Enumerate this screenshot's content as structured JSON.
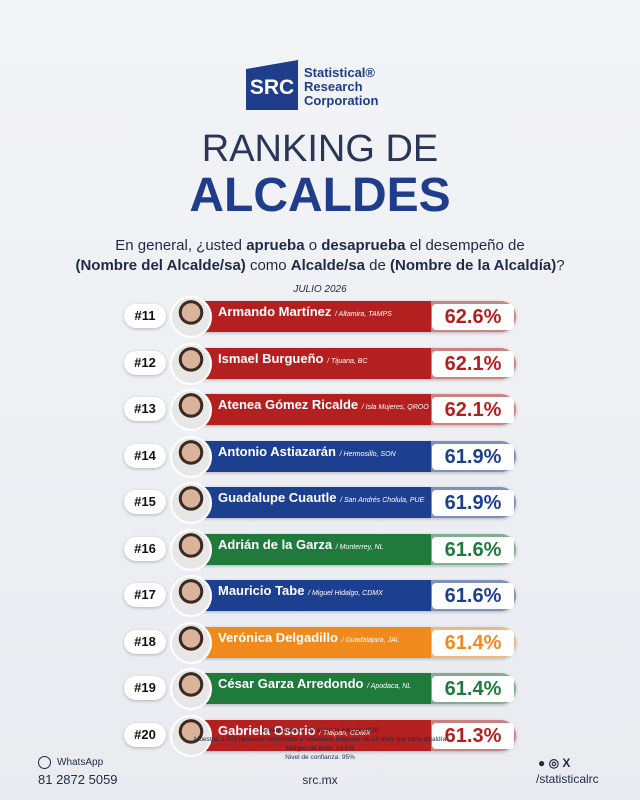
{
  "logo": {
    "mark": "SRC",
    "lines": [
      "Statistical®",
      "Research",
      "Corporation"
    ]
  },
  "header": {
    "title": "RANKING DE",
    "subtitle": "ALCALDES",
    "date": "JULIO 2026"
  },
  "question": {
    "line1": [
      "En general, ¿usted ",
      "aprueba",
      " o ",
      "desaprueba",
      " el desempeño de"
    ],
    "line2": [
      "(Nombre del Alcalde/sa)",
      " como ",
      "Alcalde/sa",
      " de ",
      "(Nombre de la Alcaldía)",
      "?"
    ]
  },
  "rows": [
    {
      "rank": "#11",
      "name": "Armando Martínez",
      "place": "/ Altamira, TAMPS",
      "value": "62.6%",
      "color": "#b3201f"
    },
    {
      "rank": "#12",
      "name": "Ismael Burgueño",
      "place": "/ Tijuana, BC",
      "value": "62.1%",
      "color": "#b3201f"
    },
    {
      "rank": "#13",
      "name": "Atenea Gómez Ricalde",
      "place": "/ Isla Mujeres, QROO",
      "value": "62.1%",
      "color": "#b3201f"
    },
    {
      "rank": "#14",
      "name": "Antonio Astiazarán",
      "place": "/ Hermosillo, SON",
      "value": "61.9%",
      "color": "#1d3f8f"
    },
    {
      "rank": "#15",
      "name": "Guadalupe Cuautle",
      "place": "/ San Andrés Cholula, PUE",
      "value": "61.9%",
      "color": "#1d3f8f"
    },
    {
      "rank": "#16",
      "name": "Adrián de la Garza",
      "place": "/ Monterrey, NL",
      "value": "61.6%",
      "color": "#1f7a3c"
    },
    {
      "rank": "#17",
      "name": "Mauricio Tabe",
      "place": "/ Miguel Hidalgo, CDMX",
      "value": "61.6%",
      "color": "#1d3f8f"
    },
    {
      "rank": "#18",
      "name": "Verónica Delgadillo",
      "place": "/ Guadalajara, JAL",
      "value": "61.4%",
      "color": "#f08a1c"
    },
    {
      "rank": "#19",
      "name": "César Garza Arredondo",
      "place": "/ Apodaca, NL",
      "value": "61.4%",
      "color": "#1f7a3c"
    },
    {
      "rank": "#20",
      "name": "Gabriela Osorio",
      "place": "/ Tlalpan, CDMX",
      "value": "61.3%",
      "color": "#b3201f"
    }
  ],
  "notes": [
    "Levantamiento: 22 al 24 de julio de 2026",
    "Muestra: 1,000 llamadas telefónicas a individuos mayores de 18 años por cada alcaldía",
    "Margen de error: ±3.1%",
    "Nivel de confianza: 95%"
  ],
  "footer": {
    "whatsapp": "WhatsApp",
    "phone": "81 2872 5059",
    "website": "src.mx",
    "social": "/statisticalrc"
  }
}
